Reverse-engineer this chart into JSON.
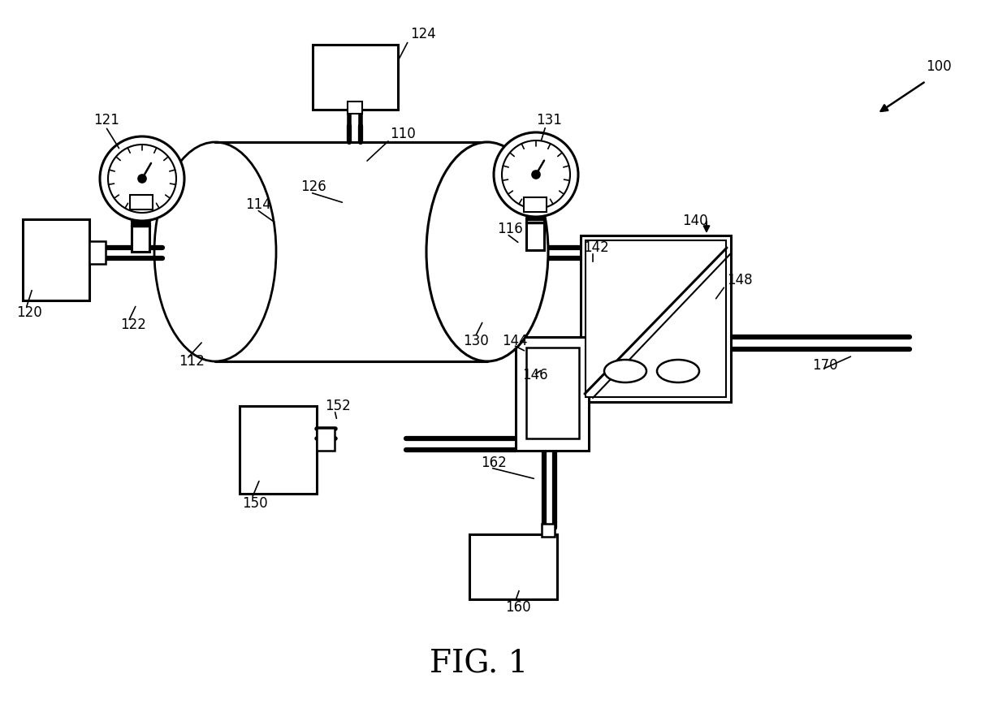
{
  "bg_color": "#ffffff",
  "line_color": "#000000",
  "fig_title": "FIG. 1"
}
